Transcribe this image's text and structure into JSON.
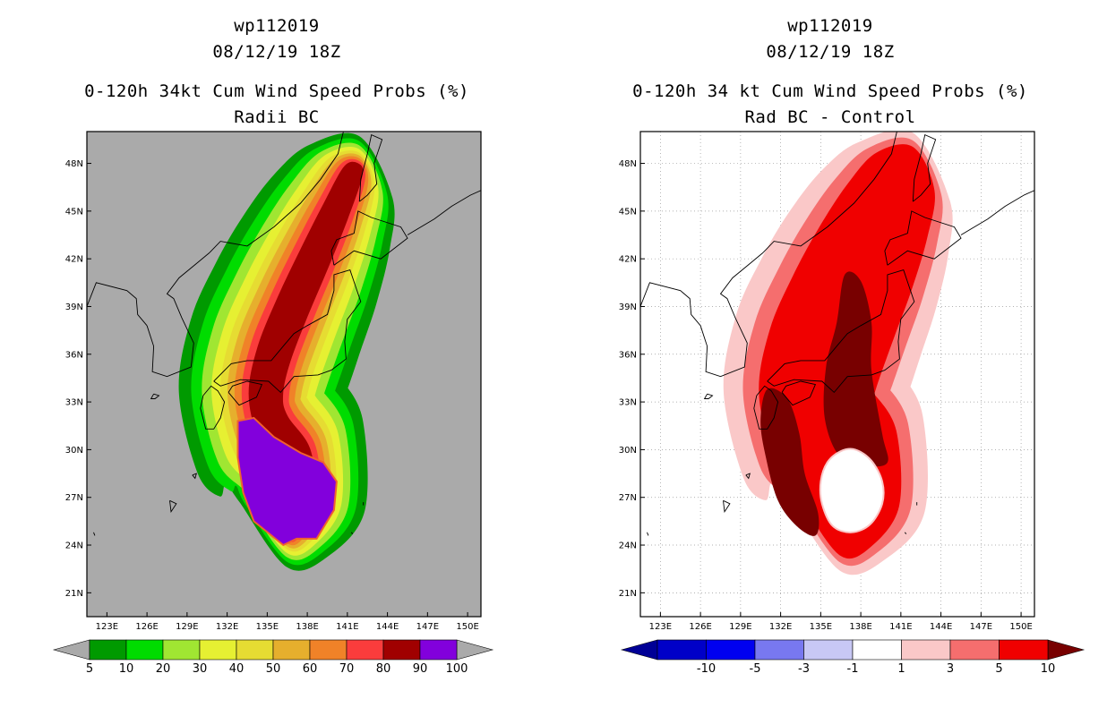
{
  "chart_data": [
    {
      "type": "filled-contour-map",
      "storm_id": "wp112019",
      "date_time": "08/12/19 18Z",
      "title": "0-120h 34kt Cum Wind Speed Probs (%)",
      "subtitle": "Radii BC",
      "x_ticks": [
        "123E",
        "126E",
        "129E",
        "132E",
        "135E",
        "138E",
        "141E",
        "144E",
        "147E",
        "150E"
      ],
      "y_ticks": [
        "21N",
        "24N",
        "27N",
        "30N",
        "33N",
        "36N",
        "39N",
        "42N",
        "45N",
        "48N"
      ],
      "xlim": [
        121.5,
        151
      ],
      "ylim": [
        19.5,
        50
      ],
      "background_color": "#aaaaaa",
      "colorbar": {
        "labels": [
          "5",
          "10",
          "20",
          "30",
          "40",
          "50",
          "60",
          "70",
          "80",
          "90",
          "100"
        ],
        "colors": [
          "#009a00",
          "#00dc00",
          "#a0e632",
          "#e6f032",
          "#e6dc32",
          "#e6af2d",
          "#f08228",
          "#fa3c3c",
          "#a00000",
          "#8200dc"
        ],
        "end_colors": [
          "#aaaaaa",
          "#aaaaaa"
        ]
      },
      "contours": [
        {
          "level": "5-10",
          "lat_radius_scale": 1.0,
          "color": "#009a00"
        },
        {
          "level": "10-20",
          "lat_radius_scale": 0.86,
          "color": "#00dc00"
        },
        {
          "level": "20-30",
          "lat_radius_scale": 0.74,
          "color": "#a0e632"
        },
        {
          "level": "30-40",
          "lat_radius_scale": 0.62,
          "color": "#e6f032"
        },
        {
          "level": "40-50",
          "lat_radius_scale": 0.5,
          "color": "#e6dc32"
        },
        {
          "level": "50-60",
          "lat_radius_scale": 0.4,
          "color": "#e6af2d"
        },
        {
          "level": "60-70",
          "lat_radius_scale": 0.31,
          "color": "#f08228"
        },
        {
          "level": "70-80",
          "lat_radius_scale": 0.22,
          "color": "#fa3c3c"
        },
        {
          "level": "80-90",
          "lat_radius_scale": 0.14,
          "color": "#a00000"
        },
        {
          "level": "90-100",
          "lat_radius_scale": 0.0,
          "color": "#8200dc"
        }
      ]
    },
    {
      "type": "filled-contour-map",
      "storm_id": "wp112019",
      "date_time": "08/12/19 18Z",
      "title": "0-120h 34 kt Cum Wind Speed Probs (%)",
      "subtitle": "Rad BC - Control",
      "x_ticks": [
        "123E",
        "126E",
        "129E",
        "132E",
        "135E",
        "138E",
        "141E",
        "144E",
        "147E",
        "150E"
      ],
      "y_ticks": [
        "21N",
        "24N",
        "27N",
        "30N",
        "33N",
        "36N",
        "39N",
        "42N",
        "45N",
        "48N"
      ],
      "xlim": [
        121.5,
        151
      ],
      "ylim": [
        19.5,
        50
      ],
      "background_color": "#ffffff",
      "grid": true,
      "colorbar": {
        "labels": [
          "-10",
          "-5",
          "-3",
          "-1",
          "1",
          "3",
          "5",
          "10"
        ],
        "colors": [
          "#0000c8",
          "#0000f0",
          "#7878f0",
          "#c8c8f5",
          "#ffffff",
          "#fac8c8",
          "#f56e6e",
          "#f00000"
        ],
        "end_colors": [
          "#000096",
          "#780000"
        ]
      },
      "contours": [
        {
          "level": "1-3",
          "color": "#fac8c8"
        },
        {
          "level": "3-5",
          "color": "#f56e6e"
        },
        {
          "level": "5-10",
          "color": "#f00000"
        },
        {
          "level": ">10",
          "color": "#780000"
        }
      ]
    }
  ]
}
